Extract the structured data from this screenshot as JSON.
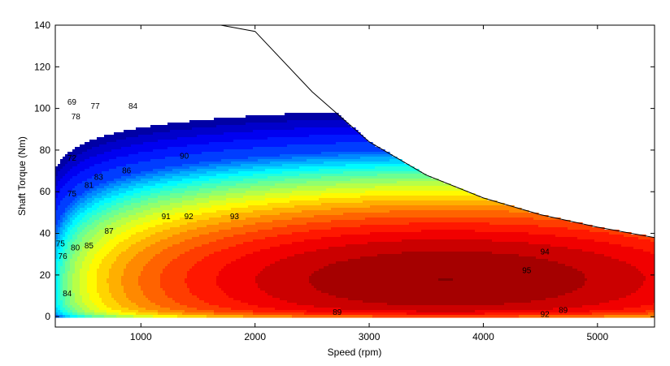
{
  "chart_data": {
    "type": "contour",
    "title": "",
    "xlabel": "Speed  (rpm)",
    "ylabel": "Shaft Torque  (Nm)",
    "xlim": [
      250,
      5500
    ],
    "ylim": [
      -5,
      140
    ],
    "xticks": [
      1000,
      2000,
      3000,
      4000,
      5000
    ],
    "yticks": [
      0,
      20,
      40,
      60,
      80,
      100,
      120,
      140
    ],
    "grid": false,
    "colormap": "jet",
    "contour_levels": [
      60,
      63,
      66,
      69,
      72,
      75,
      76,
      77,
      78,
      79,
      80,
      81,
      82,
      83,
      84,
      85,
      86,
      87,
      88,
      89,
      90,
      91,
      92,
      93,
      94,
      95,
      96
    ],
    "max_torque_envelope": {
      "speed": [
        250,
        1200,
        1700,
        2000,
        2500,
        3000,
        3500,
        4000,
        4500,
        5000,
        5500
      ],
      "torque": [
        140,
        140,
        140,
        137,
        108,
        84,
        68,
        57,
        49,
        43,
        38
      ]
    },
    "contour_labels": [
      {
        "text": "69",
        "speed": 395,
        "torque": 103
      },
      {
        "text": "72",
        "speed": 395,
        "torque": 76
      },
      {
        "text": "75",
        "speed": 395,
        "torque": 59
      },
      {
        "text": "75",
        "speed": 295,
        "torque": 35
      },
      {
        "text": "76",
        "speed": 315,
        "torque": 29
      },
      {
        "text": "77",
        "speed": 600,
        "torque": 101
      },
      {
        "text": "78",
        "speed": 430,
        "torque": 96
      },
      {
        "text": "80",
        "speed": 425,
        "torque": 33
      },
      {
        "text": "81",
        "speed": 545,
        "torque": 63
      },
      {
        "text": "83",
        "speed": 630,
        "torque": 67
      },
      {
        "text": "84",
        "speed": 930,
        "torque": 101
      },
      {
        "text": "84",
        "speed": 355,
        "torque": 11
      },
      {
        "text": "85",
        "speed": 545,
        "torque": 34
      },
      {
        "text": "86",
        "speed": 875,
        "torque": 70
      },
      {
        "text": "87",
        "speed": 720,
        "torque": 41
      },
      {
        "text": "89",
        "speed": 2720,
        "torque": 2
      },
      {
        "text": "89",
        "speed": 4700,
        "torque": 3
      },
      {
        "text": "90",
        "speed": 1380,
        "torque": 77
      },
      {
        "text": "91",
        "speed": 1220,
        "torque": 48
      },
      {
        "text": "92",
        "speed": 1420,
        "torque": 48
      },
      {
        "text": "92",
        "speed": 4540,
        "torque": 1
      },
      {
        "text": "93",
        "speed": 1820,
        "torque": 48
      },
      {
        "text": "94",
        "speed": 4540,
        "torque": 31
      },
      {
        "text": "95",
        "speed": 4380,
        "torque": 22
      }
    ]
  }
}
